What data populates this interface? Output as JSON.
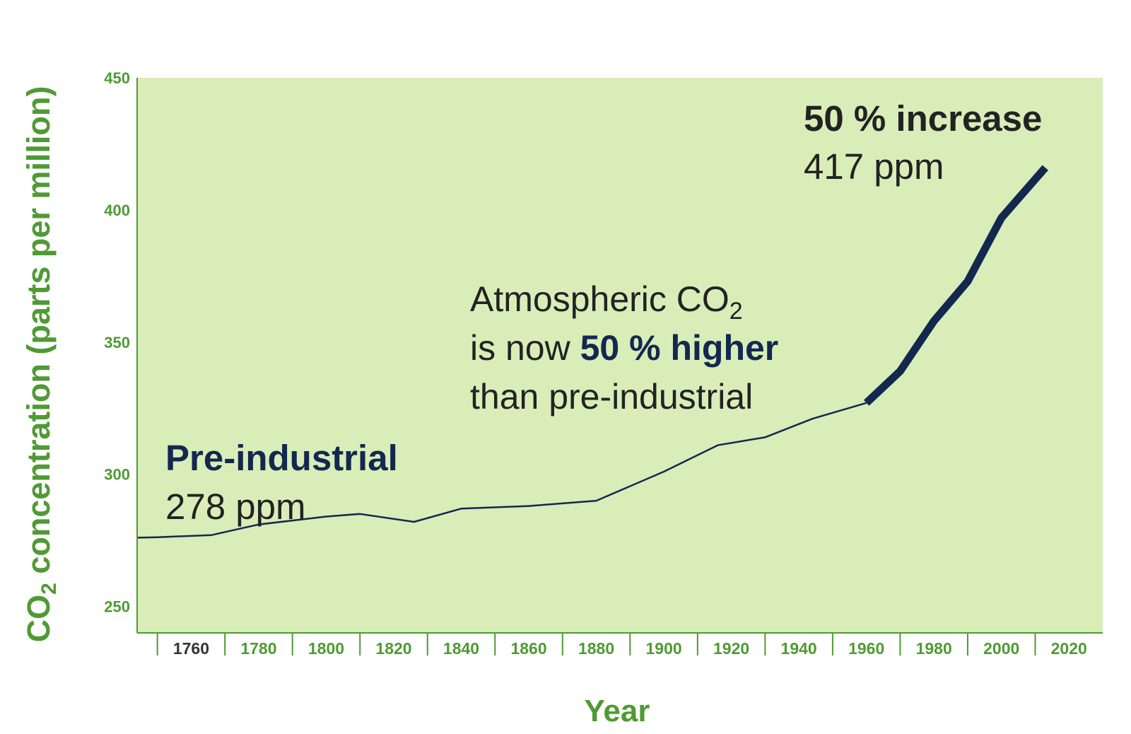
{
  "colors": {
    "plot_background": "#d9edb9",
    "axis_green": "#4f9a34",
    "line_navy": "#13284f",
    "text_dark": "#222222"
  },
  "chart_data": {
    "type": "line",
    "title": "",
    "xlabel": "Year",
    "ylabel": {
      "prefix": "CO",
      "subscript": "2",
      "suffix": " concentration (parts per million)"
    },
    "xlim": [
      1744,
      2030
    ],
    "ylim": [
      240,
      450
    ],
    "yticks": [
      250,
      300,
      350,
      400,
      450
    ],
    "xticks": [
      1760,
      1780,
      1800,
      1820,
      1840,
      1860,
      1880,
      1900,
      1920,
      1940,
      1960,
      1980,
      2000,
      2020
    ],
    "grid": false,
    "legend": "none",
    "series": [
      {
        "style": "thin",
        "x": [
          1744,
          1750,
          1766,
          1780,
          1800,
          1810,
          1826,
          1840,
          1860,
          1880,
          1900,
          1916,
          1930,
          1944,
          1960
        ],
        "y": [
          276,
          276.2,
          277,
          281,
          284,
          285,
          282,
          287,
          288,
          290,
          301,
          311,
          314,
          321,
          327
        ]
      },
      {
        "style": "thick",
        "x": [
          1960,
          1970,
          1980,
          1990,
          2000,
          2013
        ],
        "y": [
          327,
          339,
          358,
          373,
          397,
          416
        ]
      }
    ],
    "annotations": {
      "preindustrial": {
        "heading": "Pre-industrial",
        "value": "278 ppm"
      },
      "increase": {
        "heading": "50 % increase",
        "value": "417 ppm"
      },
      "middle": {
        "line1_prefix": "Atmospheric CO",
        "line1_sub": "2",
        "line2_prefix": "is now ",
        "line2_bold": "50 % higher",
        "line3": "than pre-industrial"
      }
    }
  }
}
